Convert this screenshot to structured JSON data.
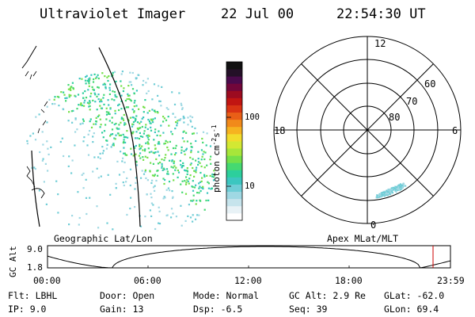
{
  "header": {
    "instrument": "Ultraviolet Imager",
    "date": "22 Jul 00",
    "time": "22:54:30 UT"
  },
  "colorbar": {
    "unit_label": "photon cm",
    "unit_exp1": "-2",
    "unit_mid": "s",
    "unit_exp2": "-1",
    "tick_labels": [
      "100",
      "10"
    ],
    "colors": [
      "#ffffff",
      "#e8f2f6",
      "#c6e4ec",
      "#9fd8e3",
      "#6fcdd6",
      "#3cc6c0",
      "#2ccf9c",
      "#45d971",
      "#74e04a",
      "#a7e63a",
      "#d3e833",
      "#f2dc2c",
      "#f6b320",
      "#f18a1a",
      "#e95f17",
      "#d93414",
      "#c11512",
      "#9c0b20",
      "#72063a",
      "#4a0a4c",
      "#241028",
      "#111111"
    ]
  },
  "left_panel": {
    "label": "Geographic Lat/Lon"
  },
  "right_panel": {
    "label": "Apex MLat/MLT",
    "mlt_labels": [
      "12",
      "18",
      "6",
      "0"
    ],
    "mlat_labels": [
      "60",
      "70",
      "80"
    ]
  },
  "altitude_plot": {
    "y_axis_label": "GC Alt",
    "y_ticks": [
      "9.0",
      "1.8"
    ],
    "x_ticks": [
      "00:00",
      "06:00",
      "12:00",
      "18:00",
      "23:59"
    ],
    "marker_color": "#cc0000"
  },
  "info": {
    "flt": "Flt: LBHL",
    "ip": "IP: 9.0",
    "door": "Door: Open",
    "gain": "Gain: 13",
    "mode": "Mode: Normal",
    "dsp": "Dsp:   -6.5",
    "gc_alt": "GC Alt: 2.9 Re",
    "seq": "Seq: 39",
    "glat": "GLat: -62.0",
    "glon": "GLon: 69.4"
  }
}
